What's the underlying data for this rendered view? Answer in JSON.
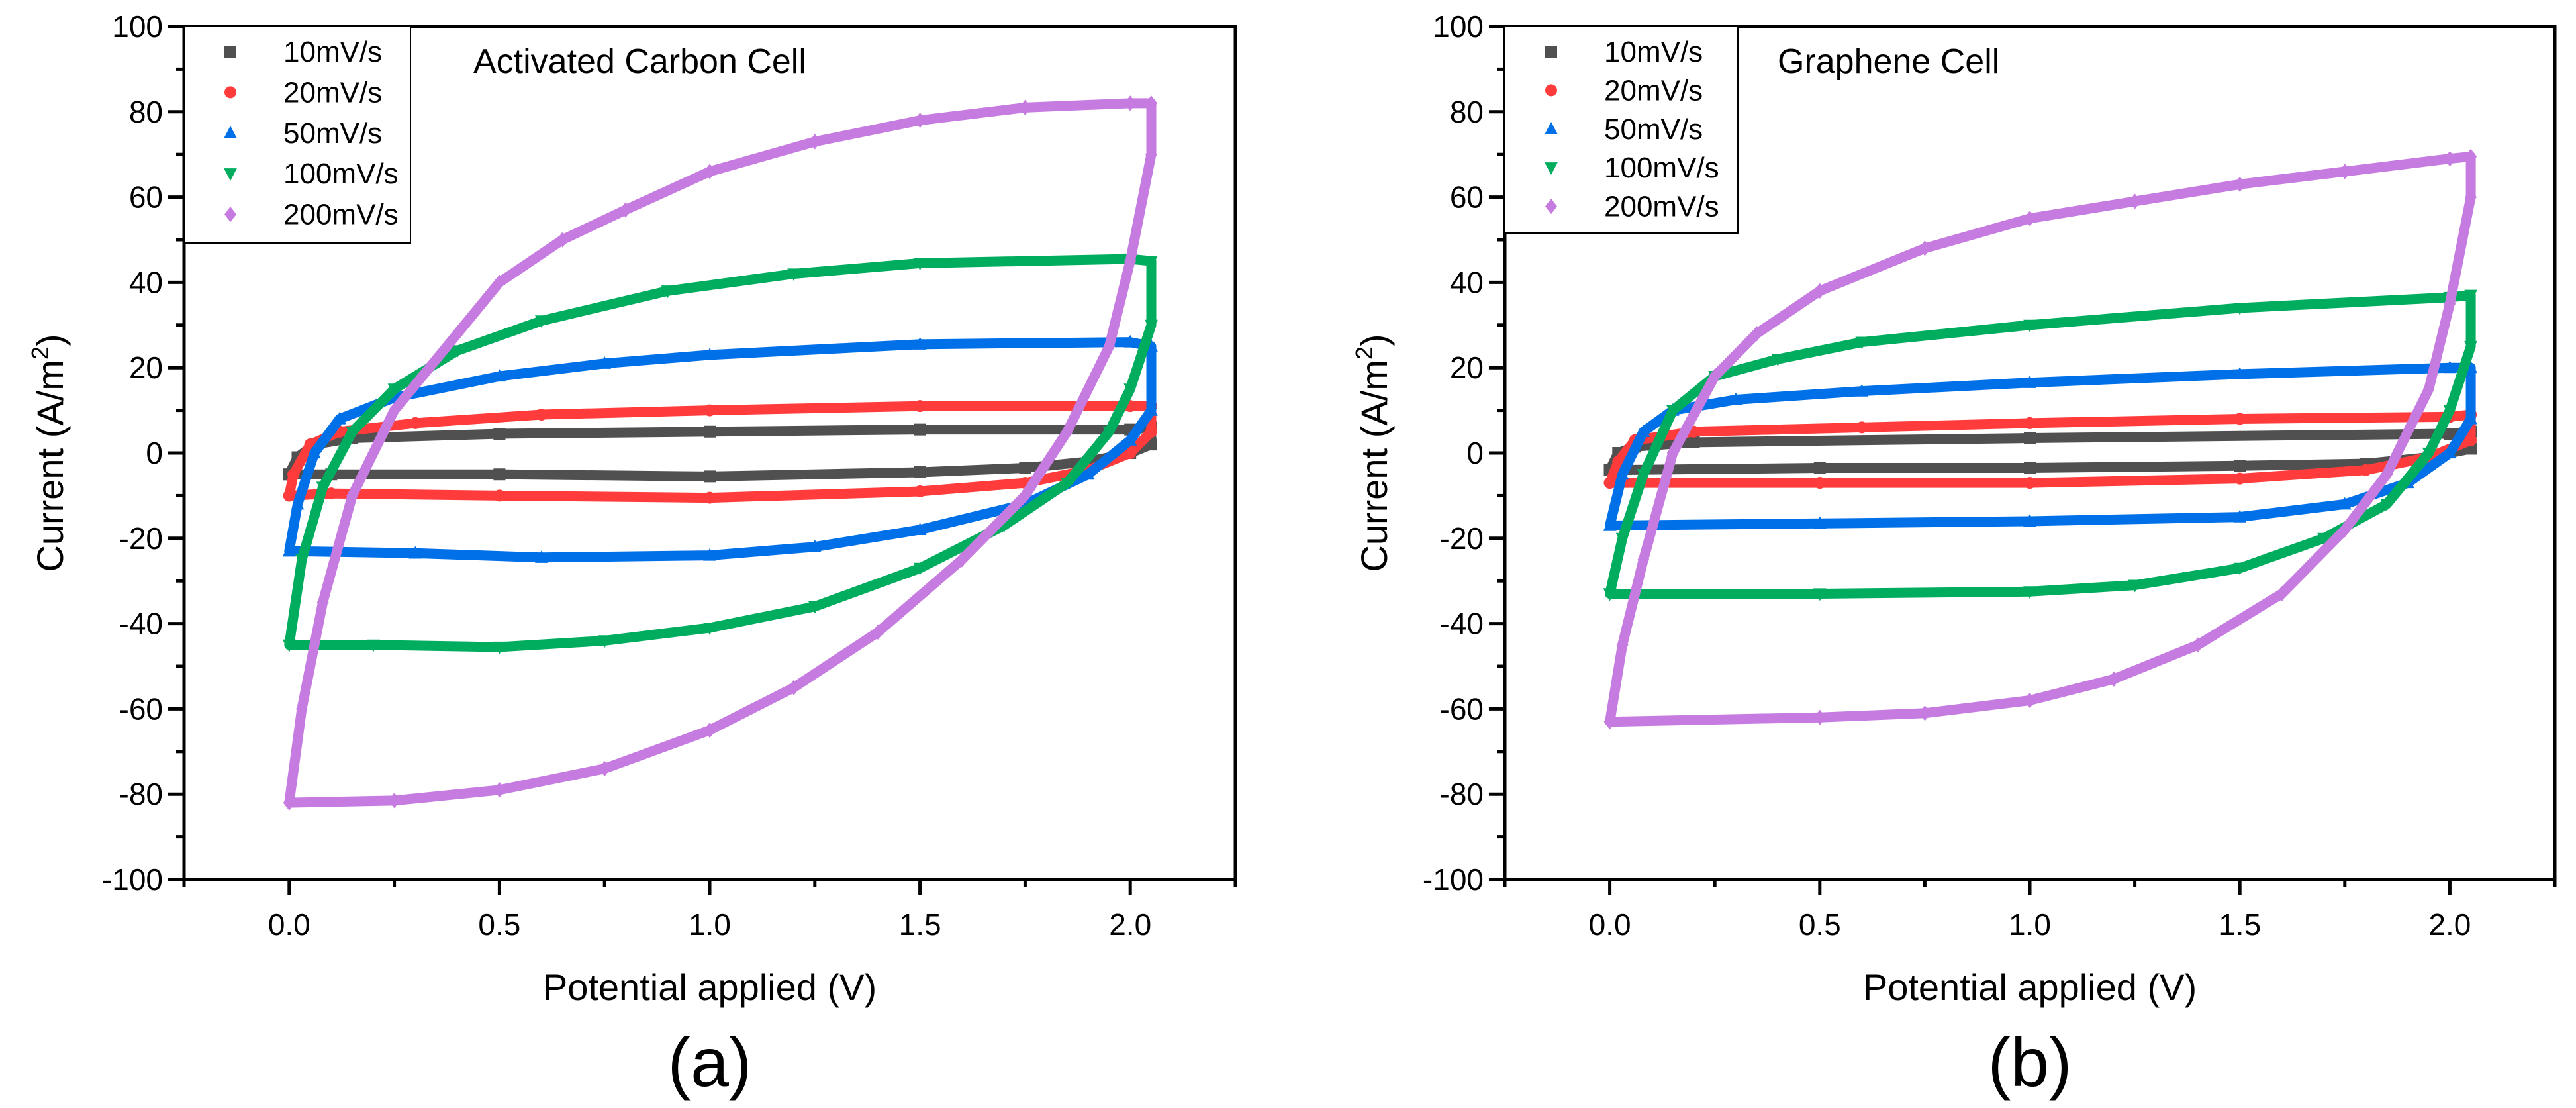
{
  "chart_data": [
    {
      "type": "scatter",
      "panel_label": "(a)",
      "title": "Activated Carbon Cell",
      "xlabel": "Potential applied (V)",
      "ylabel": "Current (A/m²)",
      "ylabel_main": "Current (A/m",
      "ylabel_sup": "2",
      "ylabel_end": ")",
      "xlim": [
        -0.25,
        2.25
      ],
      "ylim": [
        -100,
        100
      ],
      "xticks": [
        "0.0",
        "0.5",
        "1.0",
        "1.5",
        "2.0"
      ],
      "xtick_values": [
        0,
        0.5,
        1.0,
        1.5,
        2.0
      ],
      "yticks": [
        "100",
        "80",
        "60",
        "40",
        "20",
        "0",
        "-20",
        "-40",
        "-60",
        "-80",
        "-100"
      ],
      "ytick_values": [
        100,
        80,
        60,
        40,
        20,
        0,
        -20,
        -40,
        -60,
        -80,
        -100
      ],
      "legend_position": "top-left",
      "series": [
        {
          "name": "10mV/s",
          "color": "#505050",
          "marker": "square",
          "points": [
            [
              0,
              -5
            ],
            [
              0.02,
              -1
            ],
            [
              0.06,
              2
            ],
            [
              0.15,
              3.5
            ],
            [
              0.5,
              4.5
            ],
            [
              1,
              5
            ],
            [
              1.5,
              5.5
            ],
            [
              2.0,
              5.5
            ],
            [
              2.05,
              6
            ],
            [
              2.05,
              2
            ],
            [
              2.0,
              0
            ],
            [
              1.9,
              -2
            ],
            [
              1.75,
              -3.5
            ],
            [
              1.5,
              -4.5
            ],
            [
              1,
              -5.5
            ],
            [
              0.5,
              -5
            ],
            [
              0.1,
              -5
            ],
            [
              0,
              -5
            ]
          ]
        },
        {
          "name": "20mV/s",
          "color": "#ff3b3b",
          "marker": "circle",
          "points": [
            [
              0,
              -10
            ],
            [
              0.01,
              -5
            ],
            [
              0.05,
              2
            ],
            [
              0.12,
              5
            ],
            [
              0.3,
              7
            ],
            [
              0.6,
              9
            ],
            [
              1,
              10
            ],
            [
              1.5,
              11
            ],
            [
              2.0,
              11
            ],
            [
              2.05,
              11
            ],
            [
              2.05,
              5
            ],
            [
              2.0,
              0
            ],
            [
              1.9,
              -4
            ],
            [
              1.75,
              -7
            ],
            [
              1.5,
              -9
            ],
            [
              1,
              -10.5
            ],
            [
              0.5,
              -10
            ],
            [
              0.1,
              -9.5
            ],
            [
              0,
              -10
            ]
          ]
        },
        {
          "name": "50mV/s",
          "color": "#0070e8",
          "marker": "triangle-up",
          "points": [
            [
              0,
              -23
            ],
            [
              0.02,
              -12
            ],
            [
              0.06,
              0
            ],
            [
              0.12,
              8
            ],
            [
              0.25,
              13
            ],
            [
              0.5,
              18
            ],
            [
              0.75,
              21
            ],
            [
              1,
              23
            ],
            [
              1.5,
              25.5
            ],
            [
              2.0,
              26
            ],
            [
              2.05,
              25
            ],
            [
              2.05,
              10
            ],
            [
              2.0,
              3
            ],
            [
              1.9,
              -5
            ],
            [
              1.75,
              -12
            ],
            [
              1.5,
              -18
            ],
            [
              1.25,
              -22
            ],
            [
              1,
              -24
            ],
            [
              0.6,
              -24.5
            ],
            [
              0.3,
              -23.5
            ],
            [
              0,
              -23
            ]
          ]
        },
        {
          "name": "100mV/s",
          "color": "#00ad5f",
          "marker": "triangle-down",
          "points": [
            [
              0,
              -45
            ],
            [
              0.03,
              -25
            ],
            [
              0.08,
              -8
            ],
            [
              0.15,
              5
            ],
            [
              0.25,
              15
            ],
            [
              0.4,
              24
            ],
            [
              0.6,
              31
            ],
            [
              0.9,
              38
            ],
            [
              1.2,
              42
            ],
            [
              1.5,
              44.5
            ],
            [
              2.0,
              45.5
            ],
            [
              2.05,
              45
            ],
            [
              2.05,
              30
            ],
            [
              2.0,
              15
            ],
            [
              1.95,
              5
            ],
            [
              1.85,
              -7
            ],
            [
              1.7,
              -17
            ],
            [
              1.5,
              -27
            ],
            [
              1.25,
              -36
            ],
            [
              1,
              -41
            ],
            [
              0.75,
              -44
            ],
            [
              0.5,
              -45.5
            ],
            [
              0.2,
              -45
            ],
            [
              0,
              -45
            ]
          ]
        },
        {
          "name": "200mV/s",
          "color": "#c67be0",
          "marker": "diamond",
          "points": [
            [
              0,
              -82
            ],
            [
              0.03,
              -60
            ],
            [
              0.08,
              -35
            ],
            [
              0.15,
              -10
            ],
            [
              0.25,
              10
            ],
            [
              0.4,
              28
            ],
            [
              0.5,
              40
            ],
            [
              0.65,
              50
            ],
            [
              0.8,
              57
            ],
            [
              1.0,
              66
            ],
            [
              1.25,
              73
            ],
            [
              1.5,
              78
            ],
            [
              1.75,
              81
            ],
            [
              2.0,
              82
            ],
            [
              2.05,
              82
            ],
            [
              2.05,
              70
            ],
            [
              2.0,
              45
            ],
            [
              1.95,
              25
            ],
            [
              1.85,
              5
            ],
            [
              1.75,
              -10
            ],
            [
              1.6,
              -25
            ],
            [
              1.4,
              -42
            ],
            [
              1.2,
              -55
            ],
            [
              1.0,
              -65
            ],
            [
              0.75,
              -74
            ],
            [
              0.5,
              -79
            ],
            [
              0.25,
              -81.5
            ],
            [
              0,
              -82
            ]
          ]
        }
      ]
    },
    {
      "type": "scatter",
      "panel_label": "(b)",
      "title": "Graphene Cell",
      "xlabel": "Potential applied (V)",
      "ylabel": "Current (A/m²)",
      "ylabel_main": "Current (A/m",
      "ylabel_sup": "2",
      "ylabel_end": ")",
      "xlim": [
        -0.25,
        2.25
      ],
      "ylim": [
        -100,
        100
      ],
      "xticks": [
        "0.0",
        "0.5",
        "1.0",
        "1.5",
        "2.0"
      ],
      "xtick_values": [
        0,
        0.5,
        1.0,
        1.5,
        2.0
      ],
      "yticks": [
        "100",
        "80",
        "60",
        "40",
        "20",
        "0",
        "-20",
        "-40",
        "-60",
        "-80",
        "-100"
      ],
      "ytick_values": [
        100,
        80,
        60,
        40,
        20,
        0,
        -20,
        -40,
        -60,
        -80,
        -100
      ],
      "legend_position": "top-left",
      "series": [
        {
          "name": "10mV/s",
          "color": "#505050",
          "marker": "square",
          "points": [
            [
              0,
              -4
            ],
            [
              0.02,
              0
            ],
            [
              0.06,
              1.5
            ],
            [
              0.2,
              2.5
            ],
            [
              1,
              3.5
            ],
            [
              2,
              4.5
            ],
            [
              2.05,
              5
            ],
            [
              2.05,
              1
            ],
            [
              1.95,
              -1
            ],
            [
              1.8,
              -2.5
            ],
            [
              1.5,
              -3
            ],
            [
              1,
              -3.5
            ],
            [
              0.5,
              -3.5
            ],
            [
              0,
              -4
            ]
          ]
        },
        {
          "name": "20mV/s",
          "color": "#ff3b3b",
          "marker": "circle",
          "points": [
            [
              0,
              -7
            ],
            [
              0.02,
              -2
            ],
            [
              0.06,
              3
            ],
            [
              0.2,
              5
            ],
            [
              0.6,
              6
            ],
            [
              1,
              7
            ],
            [
              1.5,
              8
            ],
            [
              2.0,
              8.5
            ],
            [
              2.05,
              9
            ],
            [
              2.05,
              3
            ],
            [
              1.95,
              -1
            ],
            [
              1.8,
              -4
            ],
            [
              1.5,
              -6
            ],
            [
              1,
              -7
            ],
            [
              0.5,
              -7
            ],
            [
              0,
              -7
            ]
          ]
        },
        {
          "name": "50mV/s",
          "color": "#0070e8",
          "marker": "triangle-up",
          "points": [
            [
              0,
              -17
            ],
            [
              0.03,
              -5
            ],
            [
              0.08,
              5
            ],
            [
              0.15,
              10
            ],
            [
              0.3,
              12.5
            ],
            [
              0.6,
              14.5
            ],
            [
              1,
              16.5
            ],
            [
              1.5,
              18.5
            ],
            [
              2.0,
              20
            ],
            [
              2.05,
              20
            ],
            [
              2.05,
              8
            ],
            [
              2.0,
              0
            ],
            [
              1.9,
              -7
            ],
            [
              1.75,
              -12
            ],
            [
              1.5,
              -15
            ],
            [
              1,
              -16
            ],
            [
              0.5,
              -16.5
            ],
            [
              0,
              -17
            ]
          ]
        },
        {
          "name": "100mV/s",
          "color": "#00ad5f",
          "marker": "triangle-down",
          "points": [
            [
              0,
              -33
            ],
            [
              0.03,
              -20
            ],
            [
              0.08,
              -5
            ],
            [
              0.15,
              10
            ],
            [
              0.25,
              18
            ],
            [
              0.4,
              22
            ],
            [
              0.6,
              26
            ],
            [
              1,
              30
            ],
            [
              1.5,
              34
            ],
            [
              2.0,
              36.5
            ],
            [
              2.05,
              37
            ],
            [
              2.05,
              25
            ],
            [
              2.0,
              10
            ],
            [
              1.95,
              0
            ],
            [
              1.85,
              -12
            ],
            [
              1.7,
              -20
            ],
            [
              1.5,
              -27
            ],
            [
              1.25,
              -31
            ],
            [
              1,
              -32.5
            ],
            [
              0.5,
              -33
            ],
            [
              0,
              -33
            ]
          ]
        },
        {
          "name": "200mV/s",
          "color": "#c67be0",
          "marker": "diamond",
          "points": [
            [
              0,
              -63
            ],
            [
              0.03,
              -45
            ],
            [
              0.08,
              -25
            ],
            [
              0.15,
              0
            ],
            [
              0.25,
              18
            ],
            [
              0.35,
              28
            ],
            [
              0.5,
              38
            ],
            [
              0.75,
              48
            ],
            [
              1,
              55
            ],
            [
              1.25,
              59
            ],
            [
              1.5,
              63
            ],
            [
              1.75,
              66
            ],
            [
              2.0,
              69
            ],
            [
              2.05,
              69.5
            ],
            [
              2.05,
              60
            ],
            [
              2.0,
              35
            ],
            [
              1.95,
              15
            ],
            [
              1.85,
              -5
            ],
            [
              1.75,
              -18
            ],
            [
              1.6,
              -33
            ],
            [
              1.4,
              -45
            ],
            [
              1.2,
              -53
            ],
            [
              1.0,
              -58
            ],
            [
              0.75,
              -61
            ],
            [
              0.5,
              -62
            ],
            [
              0,
              -63
            ]
          ]
        }
      ]
    }
  ]
}
